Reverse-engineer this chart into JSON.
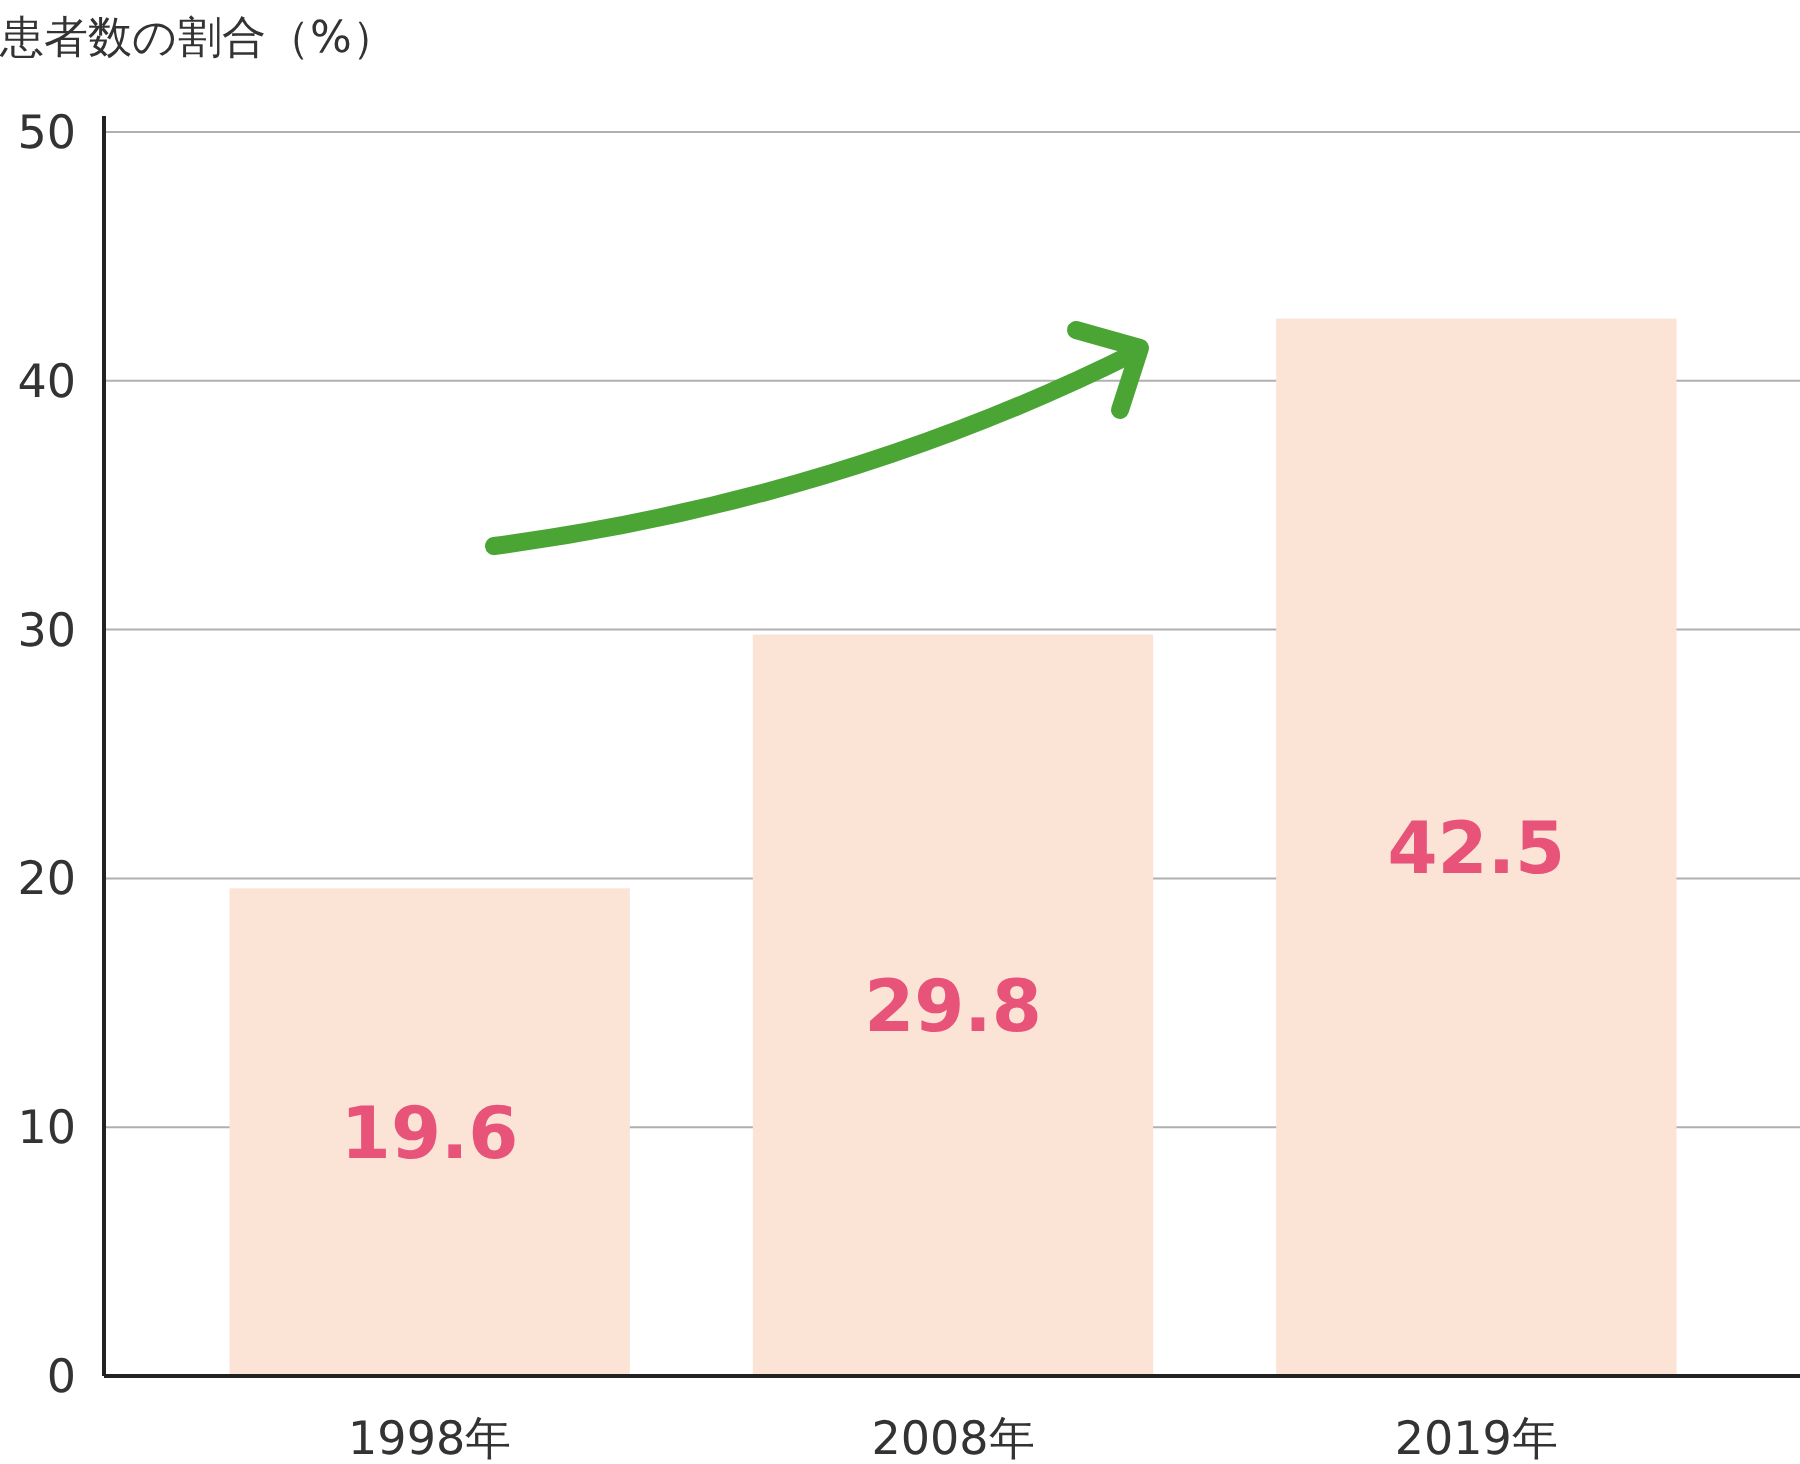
{
  "chart_data": {
    "type": "bar",
    "ylabel": "患者数の割合（%）",
    "categories": [
      "1998年",
      "2008年",
      "2019年"
    ],
    "values": [
      19.6,
      29.8,
      42.5
    ],
    "color": "#fbe3d6",
    "ylim": [
      0,
      50
    ],
    "yticks": [
      0,
      10,
      20,
      30,
      40,
      50
    ],
    "grid": "y",
    "data_labels": true
  }
}
